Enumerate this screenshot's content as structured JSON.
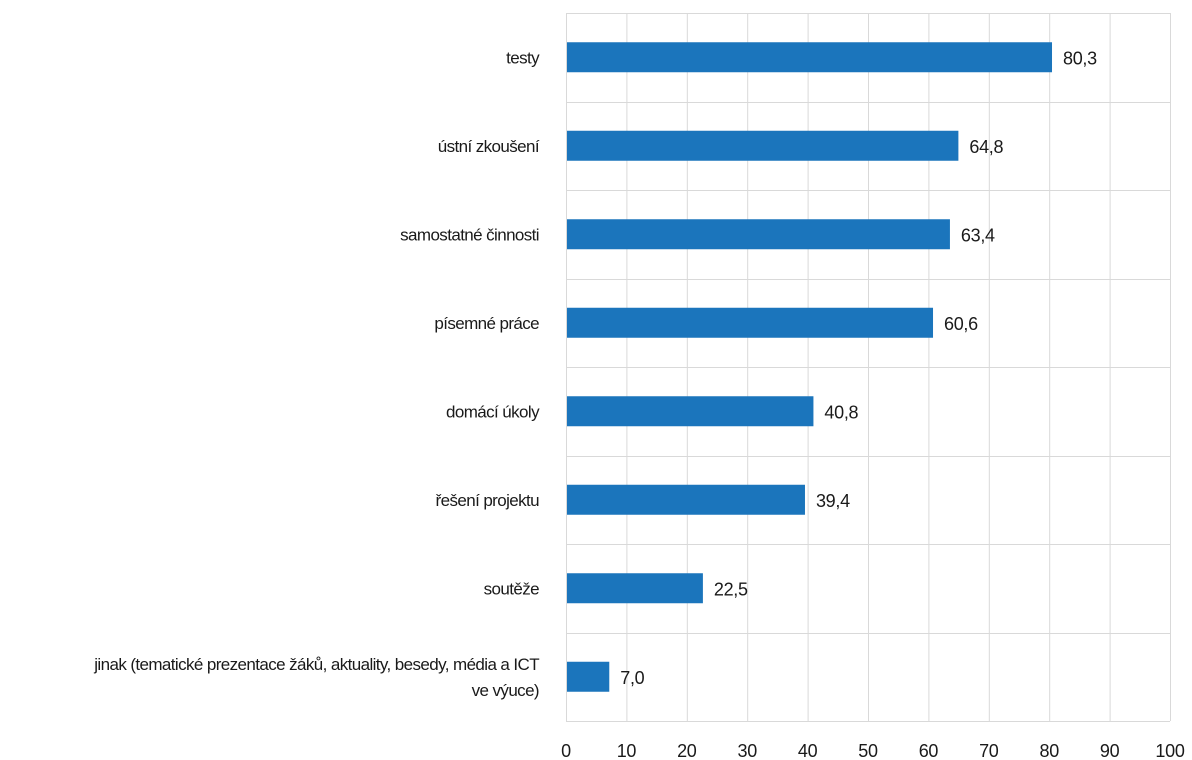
{
  "chart_data": {
    "type": "bar",
    "orientation": "horizontal",
    "categories": [
      [
        "testy"
      ],
      [
        "ústní zkoušení"
      ],
      [
        "samostatné činnosti"
      ],
      [
        "písemné práce"
      ],
      [
        "domácí úkoly"
      ],
      [
        "řešení projektu"
      ],
      [
        "soutěže"
      ],
      [
        "jinak (tematické prezentace žáků, aktuality,  besedy, média a ICT",
        "ve výuce)"
      ]
    ],
    "values": [
      80.3,
      64.8,
      63.4,
      60.6,
      40.8,
      39.4,
      22.5,
      7.0
    ],
    "value_labels": [
      "80,3",
      "64,8",
      "63,4",
      "60,6",
      "40,8",
      "39,4",
      "22,5",
      "7,0"
    ],
    "xlim": [
      0,
      100
    ],
    "x_ticks": [
      "0",
      "10",
      "20",
      "30",
      "40",
      "50",
      "60",
      "70",
      "80",
      "90",
      "100"
    ],
    "grid": true,
    "legend": "none",
    "bar_color": "#1b75bc",
    "title": "",
    "xlabel": "",
    "ylabel": ""
  }
}
